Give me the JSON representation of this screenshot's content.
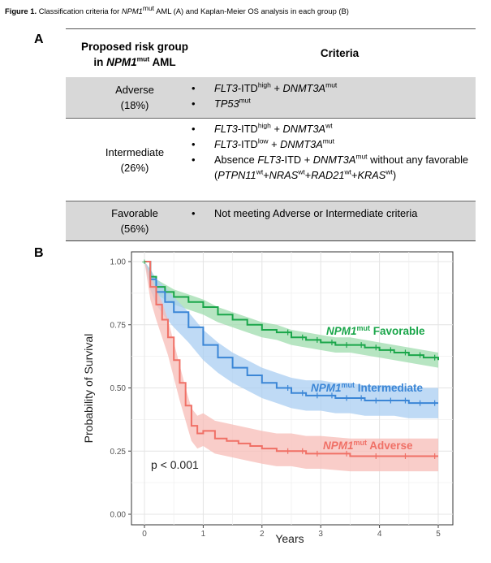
{
  "caption": {
    "label": "Figure 1.",
    "text_before": "Classification criteria for",
    "gene_italic": "NPM1",
    "gene_sup": "mut",
    "text_after": "AML (A) and Kaplan-Meier OS analysis in each group (B)"
  },
  "panel_a": {
    "label": "A",
    "header": {
      "group_line1": "Proposed risk group",
      "group_line2_prefix": "in",
      "group_line2_gene": "NPM1",
      "group_line2_sup": "mut",
      "group_line2_suffix": "AML",
      "criteria": "Criteria"
    },
    "rows": [
      {
        "group": "Adverse",
        "pct": "(18%)",
        "criteria": [
          [
            {
              "t": "FLT3",
              "i": true
            },
            {
              "t": "-ITD"
            },
            {
              "t": "high",
              "s": true
            },
            {
              "t": " + "
            },
            {
              "t": "DNMT3A",
              "i": true
            },
            {
              "t": "mut",
              "s": true
            }
          ],
          [
            {
              "t": "TP53",
              "i": true
            },
            {
              "t": "mut",
              "s": true
            }
          ]
        ]
      },
      {
        "group": "Intermediate",
        "pct": "(26%)",
        "criteria": [
          [
            {
              "t": "FLT3",
              "i": true
            },
            {
              "t": "-ITD"
            },
            {
              "t": "high",
              "s": true
            },
            {
              "t": " + "
            },
            {
              "t": "DNMT3A",
              "i": true
            },
            {
              "t": "wt",
              "s": true
            }
          ],
          [
            {
              "t": "FLT3",
              "i": true
            },
            {
              "t": "-ITD"
            },
            {
              "t": "low",
              "s": true
            },
            {
              "t": " + "
            },
            {
              "t": "DNMT3A",
              "i": true
            },
            {
              "t": "mut",
              "s": true
            }
          ],
          [
            {
              "t": "Absence "
            },
            {
              "t": "FLT3",
              "i": true
            },
            {
              "t": "-ITD + "
            },
            {
              "t": "DNMT3A",
              "i": true
            },
            {
              "t": "mut",
              "s": true
            },
            {
              "t": " without any favorable ("
            },
            {
              "t": "PTPN11",
              "i": true
            },
            {
              "t": "wt",
              "s": true
            },
            {
              "t": "+"
            },
            {
              "t": "NRAS",
              "i": true
            },
            {
              "t": "wt",
              "s": true
            },
            {
              "t": "+"
            },
            {
              "t": "RAD21",
              "i": true
            },
            {
              "t": "wt",
              "s": true
            },
            {
              "t": "+"
            },
            {
              "t": "KRAS",
              "i": true
            },
            {
              "t": "wt",
              "s": true
            },
            {
              "t": ")"
            }
          ]
        ]
      },
      {
        "group": "Favorable",
        "pct": "(56%)",
        "criteria": [
          [
            {
              "t": "Not meeting Adverse or Intermediate criteria"
            }
          ]
        ]
      }
    ]
  },
  "panel_b": {
    "label": "B",
    "pvalue": "p < 0.001"
  },
  "chart_data": {
    "type": "line",
    "title": "",
    "xlabel": "Years",
    "ylabel": "Probability of Survival",
    "xlim": [
      0,
      5
    ],
    "ylim": [
      0,
      1
    ],
    "x_ticks": [
      "0",
      "1",
      "2",
      "3",
      "4",
      "5"
    ],
    "y_ticks": [
      "0.00",
      "0.25",
      "0.50",
      "0.75",
      "1.00"
    ],
    "grid": true,
    "series": [
      {
        "name": "NPM1mut Favorable",
        "label_gene": "NPM1",
        "label_sup": "mut",
        "label_text": "Favorable",
        "color": "#1aa64a",
        "band_color": "#9fdcae",
        "x": [
          0,
          0.1,
          0.2,
          0.35,
          0.5,
          0.75,
          1.0,
          1.25,
          1.5,
          1.75,
          2.0,
          2.25,
          2.5,
          2.75,
          3.0,
          3.25,
          3.5,
          3.75,
          4.0,
          4.25,
          4.5,
          4.75,
          5.0
        ],
        "y": [
          1.0,
          0.94,
          0.9,
          0.88,
          0.86,
          0.84,
          0.82,
          0.79,
          0.77,
          0.75,
          0.73,
          0.72,
          0.7,
          0.69,
          0.68,
          0.67,
          0.67,
          0.66,
          0.65,
          0.64,
          0.63,
          0.62,
          0.61
        ],
        "lower": [
          1.0,
          0.91,
          0.87,
          0.85,
          0.83,
          0.81,
          0.79,
          0.76,
          0.74,
          0.72,
          0.7,
          0.69,
          0.67,
          0.66,
          0.65,
          0.64,
          0.64,
          0.63,
          0.62,
          0.61,
          0.6,
          0.59,
          0.58
        ],
        "upper": [
          1.0,
          0.97,
          0.93,
          0.91,
          0.89,
          0.87,
          0.85,
          0.82,
          0.8,
          0.78,
          0.76,
          0.75,
          0.73,
          0.72,
          0.71,
          0.7,
          0.7,
          0.69,
          0.68,
          0.67,
          0.66,
          0.65,
          0.64
        ]
      },
      {
        "name": "NPM1mut Intermediate",
        "label_gene": "NPM1",
        "label_sup": "mut",
        "label_text": "Intermediate",
        "color": "#3b86d6",
        "band_color": "#aacdf1",
        "x": [
          0,
          0.1,
          0.2,
          0.35,
          0.5,
          0.75,
          1.0,
          1.25,
          1.5,
          1.75,
          2.0,
          2.25,
          2.5,
          2.75,
          3.0,
          3.25,
          3.5,
          3.75,
          4.0,
          4.25,
          4.5,
          4.75,
          5.0
        ],
        "y": [
          1.0,
          0.93,
          0.88,
          0.84,
          0.8,
          0.74,
          0.67,
          0.62,
          0.58,
          0.55,
          0.52,
          0.5,
          0.48,
          0.47,
          0.47,
          0.46,
          0.46,
          0.45,
          0.45,
          0.45,
          0.44,
          0.44,
          0.44
        ],
        "lower": [
          1.0,
          0.89,
          0.83,
          0.78,
          0.74,
          0.68,
          0.61,
          0.56,
          0.52,
          0.49,
          0.46,
          0.44,
          0.42,
          0.41,
          0.41,
          0.4,
          0.4,
          0.39,
          0.39,
          0.39,
          0.38,
          0.38,
          0.38
        ],
        "upper": [
          1.0,
          0.97,
          0.93,
          0.9,
          0.86,
          0.8,
          0.73,
          0.68,
          0.64,
          0.61,
          0.58,
          0.56,
          0.54,
          0.53,
          0.53,
          0.52,
          0.52,
          0.51,
          0.51,
          0.51,
          0.5,
          0.5,
          0.5
        ]
      },
      {
        "name": "NPM1mut Adverse",
        "label_gene": "NPM1",
        "label_sup": "mut",
        "label_text": "Adverse",
        "color": "#f07066",
        "band_color": "#f7bcb7",
        "x": [
          0,
          0.1,
          0.2,
          0.3,
          0.4,
          0.5,
          0.6,
          0.7,
          0.8,
          0.9,
          1.0,
          1.2,
          1.4,
          1.6,
          1.8,
          2.0,
          2.25,
          2.5,
          2.75,
          3.0,
          3.5,
          4.0,
          4.5,
          5.0
        ],
        "y": [
          1.0,
          0.9,
          0.83,
          0.77,
          0.7,
          0.61,
          0.52,
          0.43,
          0.35,
          0.32,
          0.33,
          0.3,
          0.29,
          0.28,
          0.27,
          0.26,
          0.25,
          0.25,
          0.24,
          0.24,
          0.23,
          0.23,
          0.23,
          0.23
        ],
        "lower": [
          1.0,
          0.85,
          0.77,
          0.7,
          0.63,
          0.54,
          0.45,
          0.37,
          0.29,
          0.26,
          0.27,
          0.24,
          0.23,
          0.22,
          0.21,
          0.2,
          0.19,
          0.19,
          0.18,
          0.18,
          0.17,
          0.17,
          0.17,
          0.17
        ],
        "upper": [
          1.0,
          0.95,
          0.89,
          0.84,
          0.77,
          0.68,
          0.59,
          0.5,
          0.42,
          0.39,
          0.4,
          0.37,
          0.36,
          0.35,
          0.34,
          0.33,
          0.32,
          0.32,
          0.31,
          0.31,
          0.3,
          0.3,
          0.3,
          0.3
        ]
      }
    ]
  }
}
